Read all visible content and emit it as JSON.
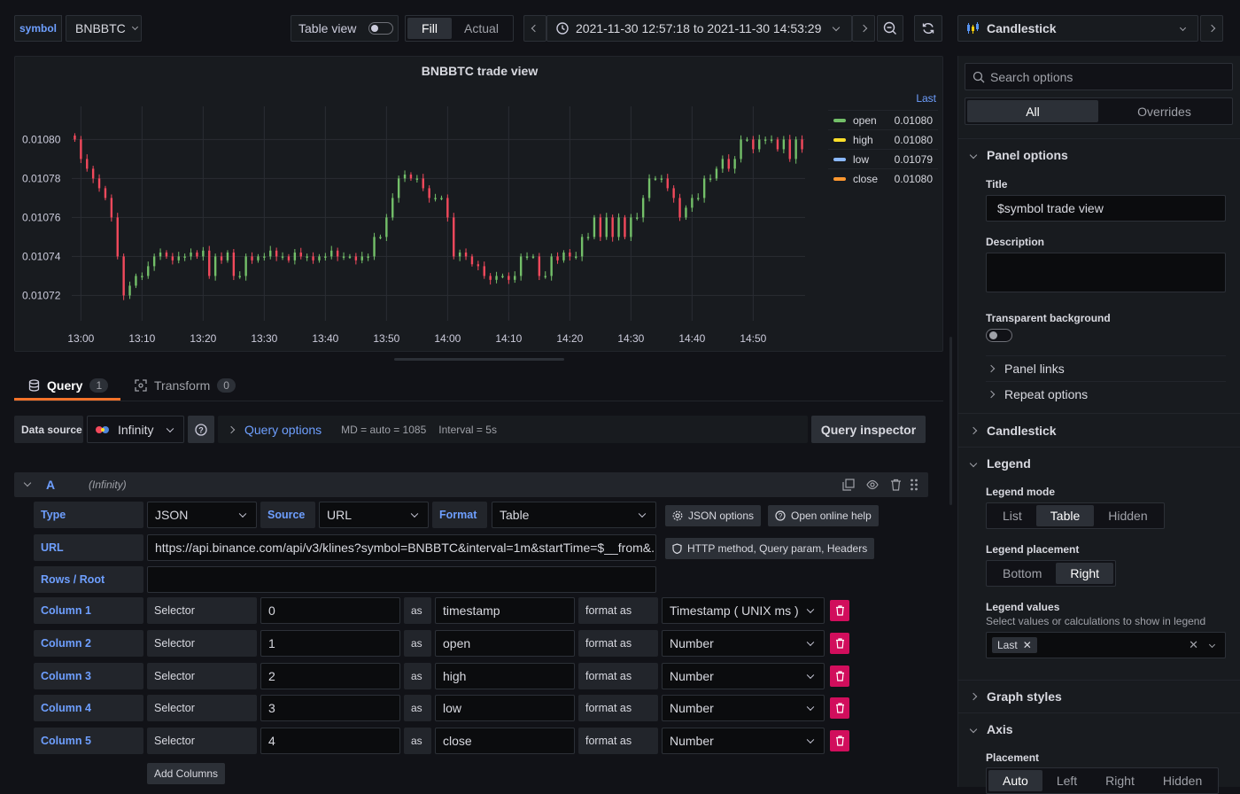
{
  "toolbar": {
    "var_label": "symbol",
    "var_value": "BNBBTC",
    "table_view": "Table view",
    "fill": "Fill",
    "actual": "Actual",
    "time_range": "2021-11-30 12:57:18 to 2021-11-30 14:53:29",
    "viz": "Candlestick"
  },
  "panel": {
    "title": "BNBBTC trade view",
    "legend_header": "Last",
    "legend": [
      {
        "name": "open",
        "value": "0.01080",
        "color": "#73bf69"
      },
      {
        "name": "high",
        "value": "0.01080",
        "color": "#fade2a"
      },
      {
        "name": "low",
        "value": "0.01079",
        "color": "#8ab8ff"
      },
      {
        "name": "close",
        "value": "0.01080",
        "color": "#ff9830"
      }
    ]
  },
  "chart_data": {
    "type": "candlestick",
    "title": "BNBBTC trade view",
    "x_ticks": [
      "13:00",
      "13:10",
      "13:20",
      "13:30",
      "13:40",
      "13:50",
      "14:00",
      "14:10",
      "14:20",
      "14:30",
      "14:40",
      "14:50"
    ],
    "y_ticks": [
      "0.01080",
      "0.01078",
      "0.01076",
      "0.01074",
      "0.01072"
    ],
    "ylim": [
      0.010707,
      0.010817
    ],
    "up_color": "#73bf69",
    "down_color": "#f2495c",
    "close": [
      0.0108,
      0.01079,
      0.010785,
      0.01078,
      0.010775,
      0.01077,
      0.01076,
      0.01074,
      0.01072,
      0.010725,
      0.01073,
      0.01073,
      0.010735,
      0.01074,
      0.010742,
      0.01074,
      0.010738,
      0.01074,
      0.01074,
      0.010742,
      0.01074,
      0.010743,
      0.01073,
      0.01074,
      0.010738,
      0.010742,
      0.01073,
      0.01073,
      0.01074,
      0.010738,
      0.01074,
      0.01074,
      0.010743,
      0.01074,
      0.01074,
      0.010738,
      0.010742,
      0.01074,
      0.01074,
      0.010738,
      0.01074,
      0.01074,
      0.010743,
      0.01074,
      0.01074,
      0.01074,
      0.010738,
      0.01074,
      0.01074,
      0.01075,
      0.01075,
      0.01076,
      0.01077,
      0.01078,
      0.010782,
      0.01078,
      0.01078,
      0.010775,
      0.01077,
      0.01077,
      0.01077,
      0.01076,
      0.01074,
      0.010742,
      0.01074,
      0.010736,
      0.010735,
      0.01073,
      0.010728,
      0.01073,
      0.01073,
      0.010728,
      0.01073,
      0.01074,
      0.01074,
      0.01074,
      0.01073,
      0.01073,
      0.01074,
      0.010738,
      0.010742,
      0.01074,
      0.01074,
      0.01075,
      0.01075,
      0.01076,
      0.01075,
      0.01076,
      0.01075,
      0.01076,
      0.01075,
      0.01076,
      0.01076,
      0.01077,
      0.01078,
      0.01078,
      0.01078,
      0.010775,
      0.01077,
      0.01076,
      0.010765,
      0.01077,
      0.01077,
      0.01078,
      0.01078,
      0.010785,
      0.01079,
      0.010785,
      0.01079,
      0.0108,
      0.0108,
      0.010795,
      0.0108,
      0.0108,
      0.0108,
      0.010795,
      0.0108,
      0.01079,
      0.0108,
      0.010795
    ]
  },
  "tabs": {
    "query": "Query",
    "query_count": "1",
    "transform": "Transform",
    "transform_count": "0"
  },
  "datasource": {
    "label": "Data source",
    "name": "Infinity",
    "query_options": "Query options",
    "md": "MD = auto = 1085",
    "interval": "Interval = 5s",
    "inspector": "Query inspector"
  },
  "query": {
    "ref": "A",
    "ds": "(Infinity)",
    "type_label": "Type",
    "type_value": "JSON",
    "source_label": "Source",
    "source_value": "URL",
    "format_label": "Format",
    "format_value": "Table",
    "json_options": "JSON options",
    "help": "Open online help",
    "url_label": "URL",
    "url_value": "https://api.binance.com/api/v3/klines?symbol=BNBBTC&interval=1m&startTime=$__from&...",
    "http_options": "HTTP method, Query param, Headers",
    "rows_label": "Rows / Root",
    "rows_value": "",
    "columns": [
      {
        "label": "Column 1",
        "kind": "Selector",
        "selector": "0",
        "as": "as",
        "alias": "timestamp",
        "format_as": "format as",
        "format": "Timestamp ( UNIX ms )"
      },
      {
        "label": "Column 2",
        "kind": "Selector",
        "selector": "1",
        "as": "as",
        "alias": "open",
        "format_as": "format as",
        "format": "Number"
      },
      {
        "label": "Column 3",
        "kind": "Selector",
        "selector": "2",
        "as": "as",
        "alias": "high",
        "format_as": "format as",
        "format": "Number"
      },
      {
        "label": "Column 4",
        "kind": "Selector",
        "selector": "3",
        "as": "as",
        "alias": "low",
        "format_as": "format as",
        "format": "Number"
      },
      {
        "label": "Column 5",
        "kind": "Selector",
        "selector": "4",
        "as": "as",
        "alias": "close",
        "format_as": "format as",
        "format": "Number"
      }
    ],
    "add_columns": "Add Columns"
  },
  "options": {
    "search_placeholder": "Search options",
    "tab_all": "All",
    "tab_overrides": "Overrides",
    "panel_options": "Panel options",
    "title_label": "Title",
    "title_value": "$symbol trade view",
    "description_label": "Description",
    "transparent_label": "Transparent background",
    "panel_links": "Panel links",
    "repeat_options": "Repeat options",
    "candlestick": "Candlestick",
    "legend": "Legend",
    "legend_mode": "Legend mode",
    "mode_options": [
      "List",
      "Table",
      "Hidden"
    ],
    "mode_selected": "Table",
    "legend_placement": "Legend placement",
    "placement_options": [
      "Bottom",
      "Right"
    ],
    "placement_selected": "Right",
    "legend_values": "Legend values",
    "legend_values_desc": "Select values or calculations to show in legend",
    "legend_values_chip": "Last",
    "graph_styles": "Graph styles",
    "axis": "Axis",
    "axis_placement": "Placement",
    "axis_options": [
      "Auto",
      "Left",
      "Right",
      "Hidden"
    ],
    "axis_selected": "Auto"
  }
}
